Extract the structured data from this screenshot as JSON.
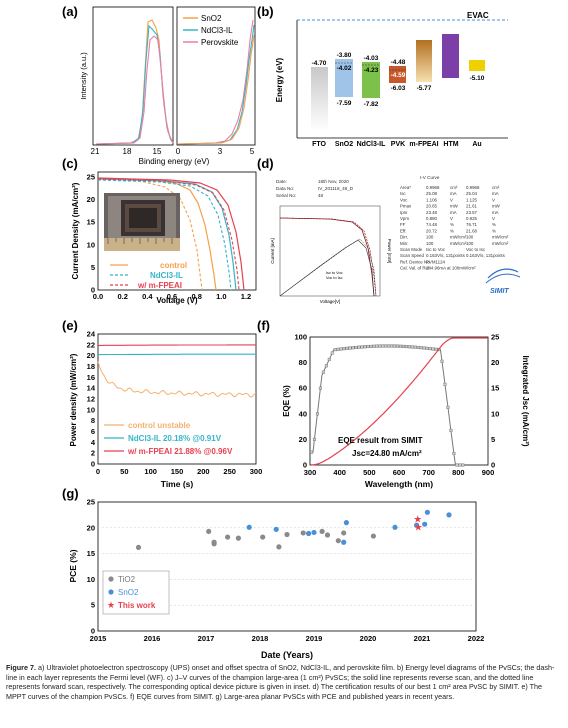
{
  "panels": {
    "a": {
      "label": "(a)",
      "ylabel": "Intensity (a.u.)",
      "xlabel": "Binding energy (eV)",
      "ticks_left": [
        "21",
        "18",
        "15"
      ],
      "ticks_right": [
        "0",
        "3",
        "5"
      ],
      "legend": [
        "SnO2",
        "NdCl3-IL",
        "Perovskite"
      ],
      "colors": {
        "sno2": "#f5a04a",
        "ndcl": "#35b5c8",
        "pvk": "#f07aa8"
      }
    },
    "b": {
      "label": "(b)",
      "ylabel": "Energy (eV)",
      "evac": "EVAC",
      "layers": [
        {
          "name": "FTO",
          "top": "-4.70",
          "bottom": "",
          "color": "#b8b8b8"
        },
        {
          "name": "SnO2",
          "top": "-3.80",
          "mid": "-4.02",
          "bottom": "-7.59",
          "color": "#9fc4e8"
        },
        {
          "name": "NdCl3-IL",
          "top": "-4.03",
          "mid": "-4.23",
          "bottom": "-7.82",
          "color": "#7cc24a"
        },
        {
          "name": "PVK",
          "top": "-4.48",
          "mid": "-4.59",
          "bottom": "-6.03",
          "color": "#c8582a"
        },
        {
          "name": "m-FPEAI",
          "top": "",
          "bottom": "-5.77",
          "color": "#e0a040"
        },
        {
          "name": "HTM",
          "top": "",
          "bottom": "",
          "color": "#7b3fa8"
        },
        {
          "name": "Au",
          "top": "",
          "bottom": "-5.10",
          "color": "#f0d000"
        }
      ]
    },
    "c": {
      "label": "(c)",
      "ylabel": "Current Density (mA/cm²)",
      "xlabel": "Voltage (V)",
      "yticks": [
        "0",
        "5",
        "10",
        "15",
        "20",
        "25"
      ],
      "xticks": [
        "0.0",
        "0.2",
        "0.4",
        "0.6",
        "0.8",
        "1.0",
        "1.2"
      ],
      "legend": [
        "control",
        "NdCl3-IL",
        "w/ m-FPEAI"
      ],
      "colors": {
        "control": "#f5a04a",
        "ndcl": "#35b5c8",
        "fpeai": "#e84050"
      }
    },
    "d": {
      "label": "(d)",
      "header_left": [
        [
          "Date:",
          "18th Nov, 2020"
        ],
        [
          "Data No:",
          "IV_201118_48_D"
        ],
        [
          "Serial No:",
          "48"
        ]
      ],
      "header_right": "I-V Curve",
      "params": [
        [
          "Area*",
          "0.9968",
          "cm²",
          "0.9968",
          "cm²"
        ],
        [
          "Isc",
          "25.08",
          "mA",
          "25.04",
          "mA"
        ],
        [
          "Voc",
          "1.106",
          "V",
          "1.125",
          "V"
        ],
        [
          "Pmax",
          "20.65",
          "mW",
          "21.61",
          "mW"
        ],
        [
          "Ipm",
          "23.48",
          "mA",
          "23.57",
          "mA"
        ],
        [
          "Vpm",
          "0.880",
          "V",
          "0.925",
          "V"
        ],
        [
          "FF",
          "74.48",
          "%",
          "76.71",
          "%"
        ],
        [
          "Eff.",
          "20.72",
          "%",
          "21.68",
          "%"
        ],
        [
          "Dirr.",
          "100",
          "mW/cm²",
          "100",
          "mW/cm²"
        ],
        [
          "Mirr.",
          "100",
          "mW/cm²",
          "100",
          "mW/cm²"
        ],
        [
          "Scan Mode",
          "Isc to Voc",
          "",
          "Voc to Isc",
          ""
        ],
        [
          "Scan Speed",
          "0.163V/s, 131points",
          "",
          "0.163V/s, 131points",
          ""
        ],
        [
          "Ref. Device No.",
          "PVM1124",
          "",
          "",
          ""
        ],
        [
          "Cal. Val. of Ref.",
          "144.96mA at 100mW/cm²",
          "",
          "",
          ""
        ]
      ],
      "logo": "SIMIT",
      "plot_xlabel": "Voltage[V]",
      "plot_ylabel": "Current [mA]",
      "plot_y2label": "Power [mW]",
      "legend": [
        "Isc to Voc",
        "Voc to Isc"
      ]
    },
    "e": {
      "label": "(e)",
      "ylabel": "Power density (mW/cm²)",
      "xlabel": "Time (s)",
      "yticks": [
        "0",
        "2",
        "4",
        "6",
        "8",
        "10",
        "12",
        "14",
        "16",
        "18",
        "20",
        "22",
        "24"
      ],
      "xticks": [
        "0",
        "50",
        "100",
        "150",
        "200",
        "250",
        "300"
      ],
      "legend": [
        "control unstable",
        "NdCl3-IL 20.18% @0.91V",
        "w/ m-FPEAI 21.88% @0.96V"
      ]
    },
    "f": {
      "label": "(f)",
      "ylabel": "EQE (%)",
      "y2label": "Integrated Jsc (mA/cm²)",
      "xlabel": "Wavelength (nm)",
      "yticks": [
        "0",
        "20",
        "40",
        "60",
        "80",
        "100"
      ],
      "y2ticks": [
        "0",
        "5",
        "10",
        "15",
        "20",
        "25"
      ],
      "xticks": [
        "300",
        "400",
        "500",
        "600",
        "700",
        "800",
        "900"
      ],
      "note1": "EQE result from SIMIT",
      "note2": "Jsc=24.80 mA/cm²"
    },
    "g": {
      "label": "(g)",
      "ylabel": "PCE (%)",
      "xlabel": "Date (Years)",
      "yticks": [
        "0",
        "5",
        "10",
        "15",
        "20",
        "25"
      ],
      "xticks": [
        "2015",
        "2016",
        "2017",
        "2018",
        "2019",
        "2020",
        "2021",
        "2022"
      ],
      "legend": [
        "TiO2",
        "SnO2",
        "This work"
      ]
    }
  },
  "caption": {
    "figure": "Figure 7.",
    "text": "a) Ultraviolet photoelectron spectroscopy (UPS) onset and offset spectra of SnO2, NdCl3-IL, and perovskite film. b) Energy level diagrams of the PvSCs; the dash-line in each layer represents the Fermi level (WF). c) J–V curves of the champion large-area (1 cm²) PvSCs; the solid line represents reverse scan, and the dotted line represents forward scan, respectively. The corresponding optical device picture is given in inset. d) The certification results of our best 1 cm² area PvSC by SIMIT. e) The MPPT curves of the champion PvSCs. f) EQE curves from SIMIT. g) Large-area planar PvSCs with PCE and published years in recent years."
  },
  "chart_data": [
    {
      "type": "scatter",
      "title": "(g)",
      "xlabel": "Date (Years)",
      "ylabel": "PCE (%)",
      "xlim": [
        2015,
        2022
      ],
      "ylim": [
        0,
        25
      ],
      "series": [
        {
          "name": "TiO2",
          "color": "#8a8a8a",
          "x": [
            2015.75,
            2017.05,
            2017.15,
            2017.15,
            2017.4,
            2017.6,
            2018.05,
            2018.35,
            2018.5,
            2018.8,
            2019.15,
            2019.25,
            2019.45,
            2019.55,
            2020.1
          ],
          "y": [
            16.2,
            19.3,
            17.2,
            16.9,
            18.2,
            18.0,
            18.2,
            16.3,
            18.7,
            19.0,
            19.3,
            18.6,
            17.5,
            19.0,
            18.4
          ]
        },
        {
          "name": "SnO2",
          "color": "#4a90d9",
          "x": [
            2017.8,
            2018.3,
            2018.9,
            2019.0,
            2019.55,
            2019.6,
            2020.5,
            2020.9,
            2021.05,
            2021.1,
            2021.5
          ],
          "y": [
            20.1,
            19.7,
            18.9,
            19.1,
            17.2,
            21.0,
            20.1,
            20.5,
            20.7,
            23.0,
            22.5
          ]
        },
        {
          "name": "This work",
          "color": "#e84050",
          "x": [
            2020.92,
            2020.93
          ],
          "y": [
            21.7,
            20.2
          ]
        }
      ]
    },
    {
      "type": "line",
      "title": "(e)",
      "xlabel": "Time (s)",
      "ylabel": "Power density (mW/cm²)",
      "xlim": [
        0,
        300
      ],
      "ylim": [
        0,
        24
      ],
      "series": [
        {
          "name": "control",
          "x": [
            0,
            20,
            50,
            100,
            150,
            200,
            250,
            300
          ],
          "y": [
            17.5,
            15.0,
            14.2,
            13.6,
            13.2,
            13.0,
            12.7,
            12.6
          ]
        },
        {
          "name": "NdCl3-IL",
          "x": [
            0,
            300
          ],
          "y": [
            20.2,
            20.2
          ]
        },
        {
          "name": "w/ m-FPEAI",
          "x": [
            0,
            300
          ],
          "y": [
            21.9,
            21.9
          ]
        }
      ]
    }
  ]
}
